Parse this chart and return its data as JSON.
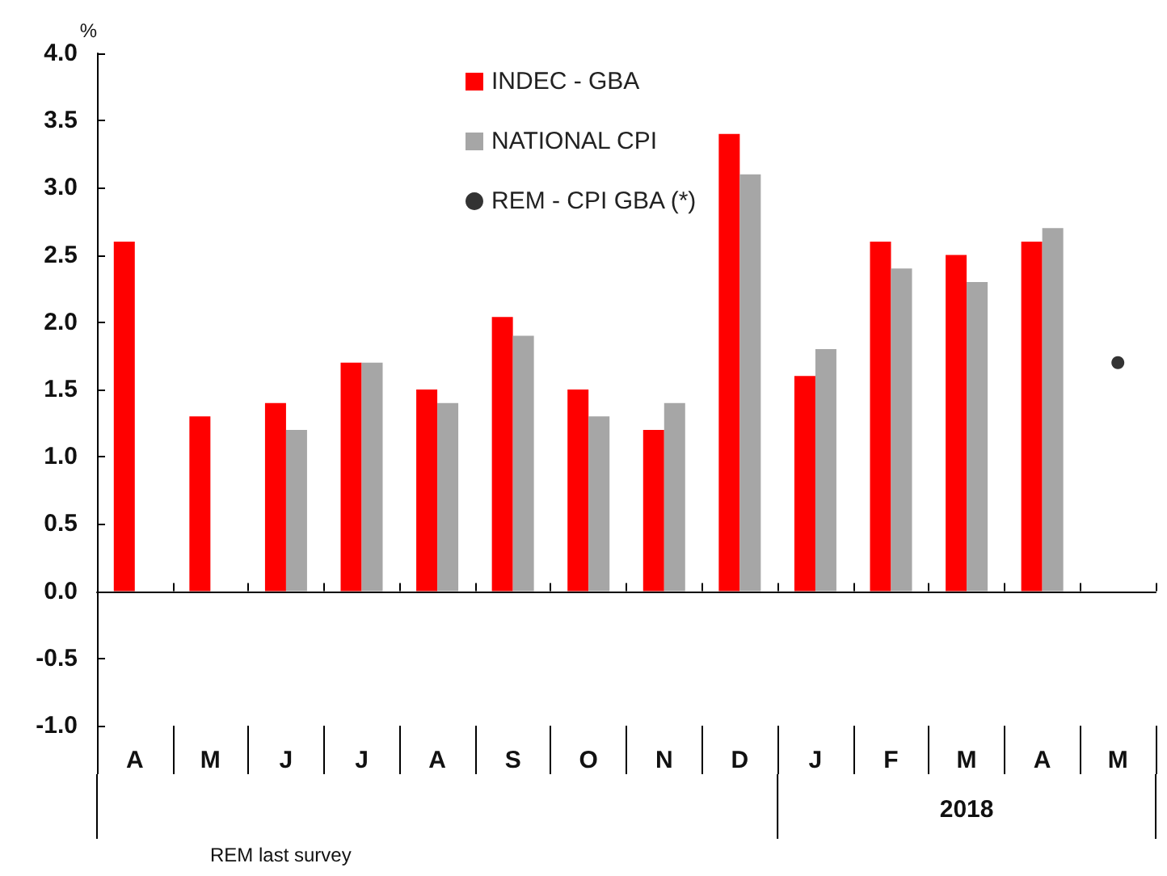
{
  "chart_data": {
    "type": "bar",
    "ylabel": "%",
    "categories": [
      "A",
      "M",
      "J",
      "J",
      "A",
      "S",
      "O",
      "N",
      "D",
      "J",
      "F",
      "M",
      "A",
      "M"
    ],
    "series": [
      {
        "name": "INDEC - GBA",
        "color": "#ff0000",
        "values": [
          2.6,
          1.3,
          1.4,
          1.7,
          1.5,
          2.04,
          1.5,
          1.2,
          3.4,
          1.6,
          2.6,
          2.5,
          2.6,
          null
        ]
      },
      {
        "name": "NATIONAL CPI",
        "color": "#a6a6a6",
        "values": [
          null,
          null,
          1.2,
          1.7,
          1.4,
          1.9,
          1.3,
          1.4,
          3.1,
          1.8,
          2.4,
          2.3,
          2.7,
          null
        ]
      },
      {
        "name": "REM - CPI GBA (*)",
        "color": "#000000",
        "type": "scatter",
        "marker": "circle",
        "values": [
          null,
          null,
          null,
          null,
          null,
          null,
          null,
          null,
          null,
          null,
          null,
          null,
          null,
          1.7
        ]
      }
    ],
    "ylim": [
      -1,
      4
    ],
    "yticks": [
      {
        "value": -1,
        "label": "-1.0"
      },
      -0.5,
      {
        "value": 0,
        "label": "0.0"
      },
      0.5,
      {
        "value": 1,
        "label": "1.0"
      },
      1.5,
      {
        "value": 2,
        "label": "2.0"
      },
      2.5,
      {
        "value": 3,
        "label": "3.0"
      },
      3.5,
      {
        "value": 4,
        "label": "4.0"
      }
    ],
    "legend": "top",
    "annotations": [
      "2018",
      "REM last survey"
    ]
  }
}
